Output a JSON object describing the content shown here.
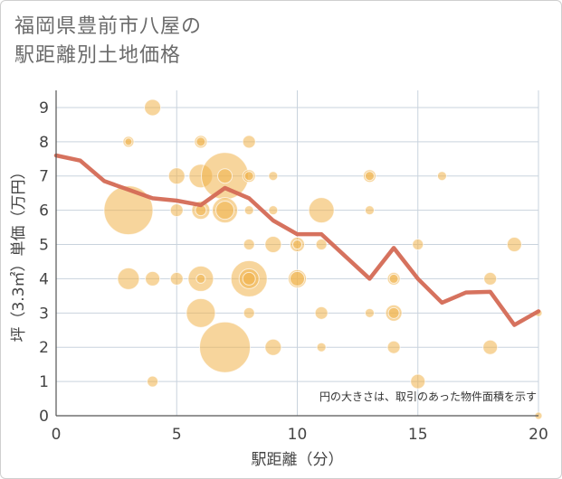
{
  "title_line1": "福岡県豊前市八屋の",
  "title_line2": "駅距離別土地価格",
  "chart_data": {
    "type": "scatter",
    "xlabel": "駅距離（分）",
    "ylabel": "坪（3.3㎡）単価（万円）",
    "xlim": [
      0,
      20
    ],
    "ylim": [
      0,
      9.5
    ],
    "xticks": [
      0,
      5,
      10,
      15,
      20
    ],
    "yticks": [
      0,
      1,
      2,
      3,
      4,
      5,
      6,
      7,
      8,
      9
    ],
    "grid": true,
    "note": "円の大きさは、取引のあった物件面積を示す",
    "colors": {
      "bubble": "#f0b34a",
      "line": "#d46a55",
      "grid": "#c9d3dd",
      "axis": "#555555"
    },
    "bubbles": [
      {
        "x": 3,
        "y": 8,
        "s": 0.6
      },
      {
        "x": 3,
        "y": 8,
        "s": 0.4
      },
      {
        "x": 3,
        "y": 6,
        "s": 2.7
      },
      {
        "x": 3,
        "y": 4,
        "s": 1.2
      },
      {
        "x": 4,
        "y": 9,
        "s": 0.9
      },
      {
        "x": 4,
        "y": 4,
        "s": 0.8
      },
      {
        "x": 4,
        "y": 1,
        "s": 0.6
      },
      {
        "x": 5,
        "y": 7,
        "s": 0.9
      },
      {
        "x": 5,
        "y": 6,
        "s": 0.7
      },
      {
        "x": 5,
        "y": 4,
        "s": 0.7
      },
      {
        "x": 6,
        "y": 8,
        "s": 0.7
      },
      {
        "x": 6,
        "y": 8,
        "s": 0.5
      },
      {
        "x": 6,
        "y": 7,
        "s": 1.3
      },
      {
        "x": 6,
        "y": 6,
        "s": 1.0
      },
      {
        "x": 6,
        "y": 6,
        "s": 0.6
      },
      {
        "x": 6,
        "y": 4,
        "s": 1.4
      },
      {
        "x": 6,
        "y": 4,
        "s": 0.5
      },
      {
        "x": 6,
        "y": 3,
        "s": 1.6
      },
      {
        "x": 7,
        "y": 7,
        "s": 2.6
      },
      {
        "x": 7,
        "y": 7,
        "s": 0.8
      },
      {
        "x": 7,
        "y": 6,
        "s": 1.4
      },
      {
        "x": 7,
        "y": 6,
        "s": 1.0
      },
      {
        "x": 7,
        "y": 2,
        "s": 2.8
      },
      {
        "x": 8,
        "y": 8,
        "s": 0.7
      },
      {
        "x": 8,
        "y": 7,
        "s": 0.7
      },
      {
        "x": 8,
        "y": 7,
        "s": 0.5
      },
      {
        "x": 8,
        "y": 6,
        "s": 0.5
      },
      {
        "x": 8,
        "y": 5,
        "s": 0.6
      },
      {
        "x": 8,
        "y": 4,
        "s": 2.0
      },
      {
        "x": 8,
        "y": 4,
        "s": 1.1
      },
      {
        "x": 8,
        "y": 4,
        "s": 0.7
      },
      {
        "x": 8,
        "y": 3,
        "s": 0.6
      },
      {
        "x": 9,
        "y": 7,
        "s": 0.5
      },
      {
        "x": 9,
        "y": 6,
        "s": 0.5
      },
      {
        "x": 9,
        "y": 5,
        "s": 0.9
      },
      {
        "x": 9,
        "y": 2,
        "s": 0.9
      },
      {
        "x": 10,
        "y": 5,
        "s": 0.8
      },
      {
        "x": 10,
        "y": 5,
        "s": 0.5
      },
      {
        "x": 10,
        "y": 4,
        "s": 1.0
      },
      {
        "x": 10,
        "y": 4,
        "s": 0.8
      },
      {
        "x": 11,
        "y": 6,
        "s": 1.4
      },
      {
        "x": 11,
        "y": 5,
        "s": 0.6
      },
      {
        "x": 11,
        "y": 3,
        "s": 0.7
      },
      {
        "x": 11,
        "y": 2,
        "s": 0.5
      },
      {
        "x": 13,
        "y": 7,
        "s": 0.7
      },
      {
        "x": 13,
        "y": 7,
        "s": 0.5
      },
      {
        "x": 13,
        "y": 6,
        "s": 0.5
      },
      {
        "x": 13,
        "y": 3,
        "s": 0.5
      },
      {
        "x": 14,
        "y": 4,
        "s": 0.7
      },
      {
        "x": 14,
        "y": 4,
        "s": 0.5
      },
      {
        "x": 14,
        "y": 3,
        "s": 0.9
      },
      {
        "x": 14,
        "y": 3,
        "s": 0.6
      },
      {
        "x": 14,
        "y": 2,
        "s": 0.7
      },
      {
        "x": 15,
        "y": 5,
        "s": 0.6
      },
      {
        "x": 15,
        "y": 1,
        "s": 0.8
      },
      {
        "x": 16,
        "y": 7,
        "s": 0.5
      },
      {
        "x": 18,
        "y": 4,
        "s": 0.7
      },
      {
        "x": 18,
        "y": 2,
        "s": 0.8
      },
      {
        "x": 19,
        "y": 5,
        "s": 0.8
      },
      {
        "x": 20,
        "y": 3,
        "s": 0.4
      },
      {
        "x": 20,
        "y": 0,
        "s": 0.4
      }
    ],
    "line": {
      "x": [
        0,
        1,
        2,
        3,
        4,
        5,
        6,
        7,
        8,
        9,
        10,
        11,
        12,
        13,
        14,
        15,
        16,
        17,
        18,
        19,
        20
      ],
      "y": [
        7.6,
        7.45,
        6.85,
        6.6,
        6.35,
        6.28,
        6.15,
        6.65,
        6.35,
        5.7,
        5.3,
        5.3,
        4.65,
        4.0,
        4.9,
        4.0,
        3.3,
        3.6,
        3.62,
        2.65,
        3.05
      ]
    }
  }
}
